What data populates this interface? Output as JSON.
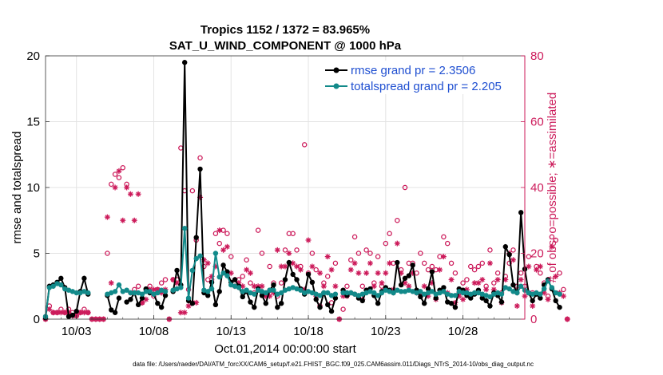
{
  "chart_data": {
    "type": "line",
    "title_line1": "Tropics 1152 / 1372 = 83.965%",
    "title_line2": "SAT_U_WIND_COMPONENT @ 1000 hPa",
    "xlabel": "Oct.01,2014 00:00:00 start",
    "ylabel_left": "rmse and totalspread",
    "ylabel_right": "# of obs: o=possible; ∗=assimilated",
    "footnote": "data file: /Users/raeder/DAI/ATM_forcXX/CAM6_setup/f.e21.FHIST_BGC.f09_025.CAM6assim.011/Diags_NTrS_2014-10/obs_diag_output.nc",
    "x_range_days": [
      1.0,
      32.0
    ],
    "ylim_left": [
      0,
      20
    ],
    "ylim_right": [
      0,
      80
    ],
    "x_ticks": [
      {
        "day": 3,
        "label": "10/03"
      },
      {
        "day": 8,
        "label": "10/08"
      },
      {
        "day": 13,
        "label": "10/13"
      },
      {
        "day": 18,
        "label": "10/18"
      },
      {
        "day": 23,
        "label": "10/23"
      },
      {
        "day": 28,
        "label": "10/28"
      }
    ],
    "y_ticks_left": [
      "0",
      "5",
      "10",
      "15",
      "20"
    ],
    "y_ticks_right": [
      "0",
      "20",
      "40",
      "60",
      "80"
    ],
    "grid": true,
    "legend_placement": "top-right",
    "colors": {
      "rmse": "#000000",
      "spread": "#128a8a",
      "obs": "#cc1a5a",
      "legend_text": "#1f4fd1"
    },
    "series": [
      {
        "name": "rmse grand pr = 2.3506",
        "key": "rmse",
        "x_start": 1.0,
        "x_step": 0.25,
        "values": [
          0.1,
          2.5,
          2.6,
          2.8,
          3.1,
          2.4,
          0.2,
          0.3,
          0.6,
          2.1,
          3.1,
          1.9,
          null,
          null,
          null,
          null,
          1.8,
          0.7,
          0.5,
          1.6,
          null,
          1.3,
          1.5,
          2.0,
          1.1,
          1.6,
          2.3,
          2.0,
          1.9,
          1.2,
          0.9,
          1.8,
          null,
          2.1,
          3.7,
          2.6,
          19.5,
          1.4,
          1.2,
          6.2,
          11.4,
          2.0,
          1.8,
          2.8,
          1.1,
          2.1,
          4.1,
          3.6,
          2.8,
          3.0,
          2.5,
          1.7,
          2.1,
          1.3,
          0.9,
          2.3,
          1.8,
          1.2,
          2.2,
          2.6,
          0.9,
          1.2,
          3.0,
          4.3,
          3.4,
          3.0,
          2.3,
          1.9,
          3.4,
          2.8,
          1.5,
          0.9,
          2.0,
          1.1,
          0.6,
          1.6,
          null,
          2.2,
          1.8,
          2.0,
          1.9,
          1.6,
          1.4,
          2.2,
          2.3,
          1.8,
          1.2,
          2.1,
          2.4,
          2.2,
          2.0,
          4.3,
          2.6,
          3.1,
          3.3,
          4.1,
          2.2,
          1.7,
          1.2,
          2.3,
          3.6,
          1.6,
          2.2,
          2.4,
          1.3,
          1.2,
          0.9,
          2.3,
          2.2,
          1.8,
          1.6,
          1.9,
          2.2,
          1.6,
          1.4,
          1.0,
          2.0,
          1.8,
          1.3,
          5.5,
          4.9,
          2.6,
          2.0,
          8.1,
          3.8,
          2.0,
          1.4,
          1.9,
          1.6,
          2.6,
          3.0,
          2.3,
          1.4,
          0.9
        ]
      },
      {
        "name": "totalspread grand pr = 2.205",
        "key": "spread",
        "x_start": 1.0,
        "x_step": 0.25,
        "values": [
          0.2,
          2.4,
          2.5,
          2.7,
          2.6,
          2.3,
          2.2,
          2.1,
          2.0,
          2.0,
          2.1,
          2.0,
          null,
          null,
          null,
          null,
          1.9,
          2.0,
          2.1,
          2.6,
          2.1,
          2.2,
          2.0,
          2.0,
          2.0,
          1.9,
          2.1,
          2.1,
          1.9,
          2.0,
          2.2,
          2.1,
          null,
          2.2,
          2.3,
          2.4,
          6.9,
          1.6,
          3.7,
          4.6,
          4.8,
          2.2,
          2.1,
          2.3,
          5.0,
          3.2,
          3.5,
          3.3,
          2.6,
          2.5,
          2.4,
          2.1,
          2.2,
          2.0,
          1.9,
          2.2,
          2.1,
          2.0,
          2.2,
          2.2,
          1.9,
          2.0,
          2.2,
          2.3,
          2.4,
          2.3,
          2.2,
          2.0,
          2.1,
          2.0,
          1.9,
          1.8,
          2.0,
          2.0,
          1.8,
          1.9,
          null,
          2.0,
          2.0,
          2.0,
          1.9,
          1.8,
          1.9,
          2.0,
          2.1,
          2.0,
          1.8,
          2.0,
          2.2,
          2.1,
          2.0,
          2.2,
          2.1,
          2.1,
          2.2,
          2.1,
          2.0,
          2.1,
          1.9,
          2.0,
          2.1,
          1.9,
          2.0,
          2.1,
          1.9,
          1.8,
          1.8,
          2.1,
          2.0,
          2.0,
          1.9,
          2.0,
          2.0,
          1.9,
          1.8,
          1.7,
          1.9,
          2.0,
          1.9,
          2.4,
          2.3,
          2.1,
          2.0,
          2.5,
          2.2,
          2.0,
          1.9,
          2.0,
          1.9,
          2.3,
          2.9,
          2.4,
          2.0,
          1.9
        ]
      },
      {
        "name": "obs possible",
        "key": "possible",
        "x_start": 1.0,
        "x_step": 0.25,
        "values": [
          0,
          4,
          2,
          2,
          3,
          2,
          3,
          2,
          1,
          2,
          3,
          2,
          0,
          0,
          0,
          0,
          20,
          41,
          44,
          43,
          46,
          41,
          8,
          9,
          10,
          5,
          9,
          10,
          7,
          9,
          11,
          12,
          0,
          12,
          12,
          52,
          39,
          9,
          39,
          24,
          49,
          16,
          12,
          12,
          26,
          23,
          27,
          26,
          19,
          12,
          12,
          13,
          18,
          11,
          8,
          27,
          20,
          8,
          16,
          11,
          7,
          11,
          21,
          26,
          26,
          21,
          16,
          53,
          14,
          20,
          15,
          4,
          11,
          13,
          5,
          17,
          0,
          3,
          10,
          18,
          25,
          20,
          10,
          21,
          20,
          11,
          19,
          10,
          23,
          26,
          17,
          30,
          15,
          40,
          17,
          17,
          14,
          20,
          17,
          15,
          16,
          15,
          19,
          25,
          23,
          17,
          14,
          8,
          11,
          12,
          16,
          15,
          16,
          17,
          10,
          21,
          11,
          14,
          8,
          13,
          17,
          21,
          10,
          14,
          10,
          19,
          8,
          16,
          14,
          11,
          7,
          25,
          24,
          14,
          9,
          0
        ]
      },
      {
        "name": "obs assimilated",
        "key": "assim",
        "x_start": 1.0,
        "x_step": 0.25,
        "values": [
          0,
          3,
          2,
          2,
          2,
          2,
          2,
          1,
          1,
          2,
          2,
          2,
          0,
          0,
          0,
          0,
          31,
          11,
          40,
          45,
          30,
          40,
          38,
          30,
          38,
          5,
          6,
          9,
          9,
          9,
          8,
          9,
          0,
          12,
          11,
          2,
          2,
          4,
          5,
          5,
          37,
          18,
          17,
          13,
          16,
          27,
          21,
          22,
          14,
          10,
          11,
          10,
          15,
          14,
          10,
          10,
          10,
          7,
          7,
          8,
          21,
          16,
          16,
          20,
          17,
          16,
          15,
          9,
          24,
          16,
          7,
          14,
          10,
          19,
          15,
          10,
          0,
          7,
          7,
          15,
          17,
          14,
          6,
          14,
          17,
          10,
          14,
          11,
          14,
          17,
          9,
          23,
          14,
          11,
          10,
          14,
          8,
          8,
          10,
          7,
          11,
          6,
          15,
          19,
          8,
          12,
          5,
          7,
          6,
          9,
          7,
          11,
          11,
          12,
          9,
          17,
          9,
          12,
          5,
          12,
          20,
          18,
          4,
          12,
          7,
          16,
          4,
          15,
          16,
          8,
          6,
          22,
          13,
          8,
          7,
          0
        ]
      }
    ]
  }
}
